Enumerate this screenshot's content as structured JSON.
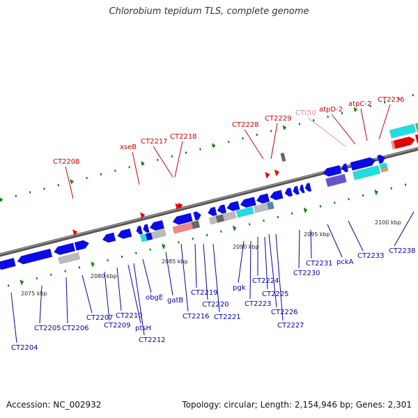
{
  "title": "Chlorobium tepidum TLS, complete genome",
  "accession": "Accession: NC_002932",
  "summary": "Topology: circular; Length: 2,154,946 bp; Genes: 2,301",
  "colors": {
    "cds": "#0a0ae6",
    "trna": "#e60000",
    "rrna_cyan": "#22dddd",
    "rrna_green": "#22cc88",
    "gray": "#bbbbbb",
    "backbone": "#777777",
    "tick": "#0a7a0a",
    "label_blue": "#0000aa",
    "label_red": "#cc0000",
    "label_pink": "#ee88aa"
  },
  "kbp_labels": [
    "2075 kbp",
    "2080 kbp",
    "2085 kbp",
    "2090 kbp",
    "2095 kbp",
    "2100 kbp"
  ],
  "upper_labels": [
    "CT2208",
    "xseB",
    "CT2217",
    "CT2218",
    "CT2228",
    "CT2229",
    "CTt50",
    "atpD-2",
    "atpC-2",
    "CT2236"
  ],
  "lower_labels": [
    "CT2204",
    "CT2205",
    "CT2206",
    "CT2207",
    "CT2209",
    "CT2210",
    "ptsH",
    "CT2212",
    "obgE",
    "gatB",
    "CT2216",
    "CT2219",
    "CT2220",
    "CT2221",
    "pgk",
    "CT2223",
    "CT2224",
    "CT2225",
    "CT2226",
    "CT2227",
    "CT2230",
    "CT2231",
    "pckA",
    "CT2233",
    "CT2238"
  ]
}
